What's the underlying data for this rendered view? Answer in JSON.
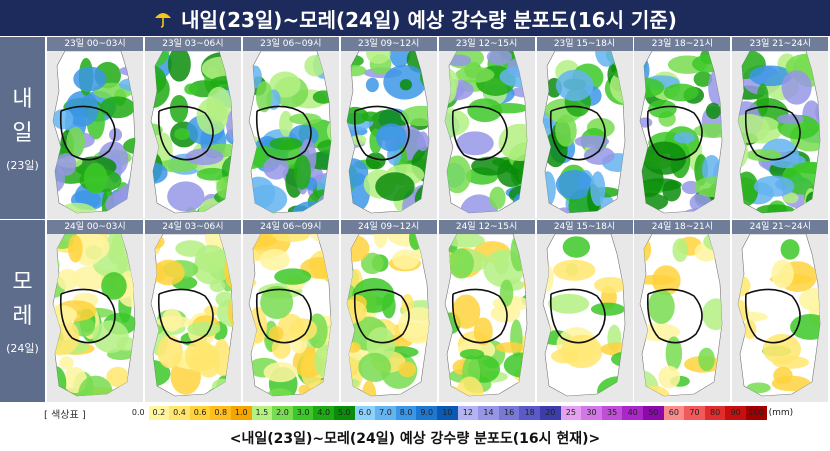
{
  "header": {
    "title": "내일(23일)~모레(24일) 예상 강수량 분포도(16시 기준)"
  },
  "rows": [
    {
      "label_lines": [
        "내",
        "일"
      ],
      "sub": "(23일)",
      "panels": [
        "23일 00~03시",
        "23일 03~06시",
        "23일 06~09시",
        "23일 09~12시",
        "23일 12~15시",
        "23일 15~18시",
        "23일 18~21시",
        "23일 21~24시"
      ]
    },
    {
      "label_lines": [
        "모",
        "레"
      ],
      "sub": "(24일)",
      "panels": [
        "24일 00~03시",
        "24일 03~06시",
        "24일 06~09시",
        "24일 09~12시",
        "24일 12~15시",
        "24일 15~18시",
        "24일 18~21시",
        "24일 21~24시"
      ]
    }
  ],
  "legend": {
    "title": "[ 색상표 ]",
    "unit": "(mm)",
    "items": [
      {
        "label": "0.0",
        "color": "#ffffff"
      },
      {
        "label": "0.2",
        "color": "#fff5a0"
      },
      {
        "label": "0.4",
        "color": "#ffe66e"
      },
      {
        "label": "0.6",
        "color": "#ffd23c"
      },
      {
        "label": "0.8",
        "color": "#ffbe1e"
      },
      {
        "label": "1.0",
        "color": "#f5a500"
      },
      {
        "label": "1.5",
        "color": "#b4f082"
      },
      {
        "label": "2.0",
        "color": "#78dc50"
      },
      {
        "label": "3.0",
        "color": "#3cc828"
      },
      {
        "label": "4.0",
        "color": "#1eaa14"
      },
      {
        "label": "5.0",
        "color": "#0a8c0a"
      },
      {
        "label": "6.0",
        "color": "#8cd2ff"
      },
      {
        "label": "7.0",
        "color": "#64b4f0"
      },
      {
        "label": "8.0",
        "color": "#3c96e6"
      },
      {
        "label": "9.0",
        "color": "#1e78d2"
      },
      {
        "label": "10",
        "color": "#0a5ab4"
      },
      {
        "label": "12",
        "color": "#b4b4f5"
      },
      {
        "label": "14",
        "color": "#9696e6"
      },
      {
        "label": "16",
        "color": "#7878d7"
      },
      {
        "label": "18",
        "color": "#5a5ac8"
      },
      {
        "label": "20",
        "color": "#3c3caa"
      },
      {
        "label": "25",
        "color": "#e6a0f0"
      },
      {
        "label": "30",
        "color": "#d278e6"
      },
      {
        "label": "35",
        "color": "#be50d7"
      },
      {
        "label": "40",
        "color": "#aa28c8"
      },
      {
        "label": "50",
        "color": "#8c0aaa"
      },
      {
        "label": "60",
        "color": "#fa8c8c"
      },
      {
        "label": "70",
        "color": "#f05a5a"
      },
      {
        "label": "80",
        "color": "#e12d2d"
      },
      {
        "label": "90",
        "color": "#c80f0f"
      },
      {
        "label": "100",
        "color": "#a00000"
      }
    ]
  },
  "caption": "<내일(23일)~모레(24일) 예상 강수량 분포도(16시 현재)>"
}
